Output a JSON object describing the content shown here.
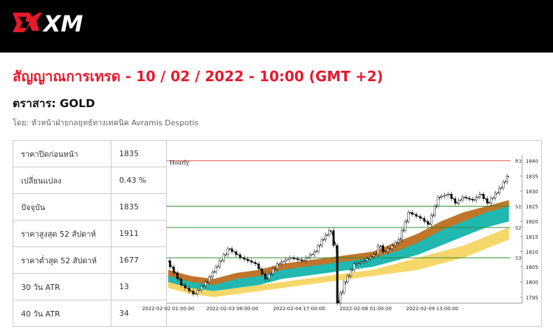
{
  "header": {
    "logo_text": "XM"
  },
  "headline": "สัญญาณการเทรด - 10 / 02 / 2022 - 10:00 (GMT +2)",
  "instrument": "ตราสาร: GOLD",
  "byline": "โดย: หัวหน้าฝ่ายกลยุทธ์ทางเทคนิค Avramis Despotis",
  "stats": [
    {
      "label": "ราคาปิดก่อนหน้า",
      "value": "1835"
    },
    {
      "label": "เปลี่ยนแปลง",
      "value": "0.43 %"
    },
    {
      "label": "ปัจจุบัน",
      "value": "1835"
    },
    {
      "label": "ราคาสูงสุด 52 สัปดาห์",
      "value": "1911"
    },
    {
      "label": "ราคาต่ำสุด 52 สัปดาห์",
      "value": "1677"
    },
    {
      "label": "30 วัน ATR",
      "value": "13"
    },
    {
      "label": "40 วัน ATR",
      "value": "34"
    }
  ],
  "chart_data": {
    "type": "candlestick",
    "timeframe_label": "Hourly",
    "x_tick_labels": [
      "2022-02-02 01:00:00",
      "2022-02-03 08:00:00",
      "2022-02-04 17:00:00",
      "2022-02-08 01:00:00",
      "2022-02-09 13:00:00"
    ],
    "y_tick_labels": [
      1795,
      1800,
      1805,
      1810,
      1815,
      1820,
      1825,
      1830,
      1835,
      1840
    ],
    "ylim": [
      1793,
      1842
    ],
    "levels": [
      {
        "name": "R1",
        "value": 1840,
        "color": "#d9534f"
      },
      {
        "name": "S1",
        "value": 1825,
        "color": "#2e8b2e"
      },
      {
        "name": "S2",
        "value": 1818,
        "color": "#2e8b2e"
      },
      {
        "name": "S3",
        "value": 1808,
        "color": "#2e8b2e"
      }
    ],
    "price_path": [
      {
        "t": 0,
        "p": 1807
      },
      {
        "t": 6,
        "p": 1799
      },
      {
        "t": 11,
        "p": 1796
      },
      {
        "t": 16,
        "p": 1800
      },
      {
        "t": 20,
        "p": 1805
      },
      {
        "t": 25,
        "p": 1811
      },
      {
        "t": 30,
        "p": 1808
      },
      {
        "t": 33,
        "p": 1807
      },
      {
        "t": 36,
        "p": 1806
      },
      {
        "t": 40,
        "p": 1801
      },
      {
        "t": 45,
        "p": 1806
      },
      {
        "t": 50,
        "p": 1808
      },
      {
        "t": 55,
        "p": 1807
      },
      {
        "t": 60,
        "p": 1810
      },
      {
        "t": 63,
        "p": 1814
      },
      {
        "t": 66,
        "p": 1817
      },
      {
        "t": 68,
        "p": 1812
      },
      {
        "t": 69,
        "p": 1793
      },
      {
        "t": 72,
        "p": 1800
      },
      {
        "t": 76,
        "p": 1806
      },
      {
        "t": 80,
        "p": 1807
      },
      {
        "t": 84,
        "p": 1809
      },
      {
        "t": 86,
        "p": 1812
      },
      {
        "t": 88,
        "p": 1810
      },
      {
        "t": 90,
        "p": 1811
      },
      {
        "t": 94,
        "p": 1814
      },
      {
        "t": 98,
        "p": 1823
      },
      {
        "t": 103,
        "p": 1821
      },
      {
        "t": 106,
        "p": 1819
      },
      {
        "t": 110,
        "p": 1828
      },
      {
        "t": 114,
        "p": 1829
      },
      {
        "t": 117,
        "p": 1826
      },
      {
        "t": 120,
        "p": 1828
      },
      {
        "t": 124,
        "p": 1827
      },
      {
        "t": 127,
        "p": 1829
      },
      {
        "t": 130,
        "p": 1826
      },
      {
        "t": 135,
        "p": 1831
      },
      {
        "t": 138,
        "p": 1835
      }
    ],
    "bands": [
      {
        "name": "",
        "color": "#c0752a",
        "upper": [
          1804,
          1802,
          1801,
          1803,
          1804,
          1806,
          1807,
          1808,
          1809,
          1810,
          1813,
          1816,
          1820,
          1823,
          1825,
          1827
        ],
        "lower": [
          1800,
          1799,
          1798,
          1799,
          1800,
          1802,
          1803,
          1804,
          1805,
          1806,
          1808,
          1811,
          1814,
          1817,
          1820,
          1822
        ]
      },
      {
        "name": "",
        "color": "#20b8b0",
        "upper": [
          1802,
          1800,
          1799,
          1801,
          1802,
          1804,
          1805,
          1806,
          1807,
          1808,
          1810,
          1813,
          1817,
          1820,
          1823,
          1825
        ],
        "lower": [
          1799,
          1798,
          1797,
          1798,
          1799,
          1801,
          1802,
          1803,
          1804,
          1805,
          1807,
          1809,
          1812,
          1815,
          1818,
          1820
        ]
      },
      {
        "name": "",
        "color": "#f6d76a",
        "upper": [
          1800,
          1798,
          1797,
          1798,
          1799,
          1800,
          1801,
          1802,
          1803,
          1804,
          1806,
          1808,
          1810,
          1812,
          1815,
          1818
        ],
        "lower": [
          1798,
          1796,
          1795,
          1796,
          1797,
          1798,
          1799,
          1800,
          1801,
          1802,
          1803,
          1804,
          1806,
          1808,
          1811,
          1814
        ]
      }
    ]
  }
}
